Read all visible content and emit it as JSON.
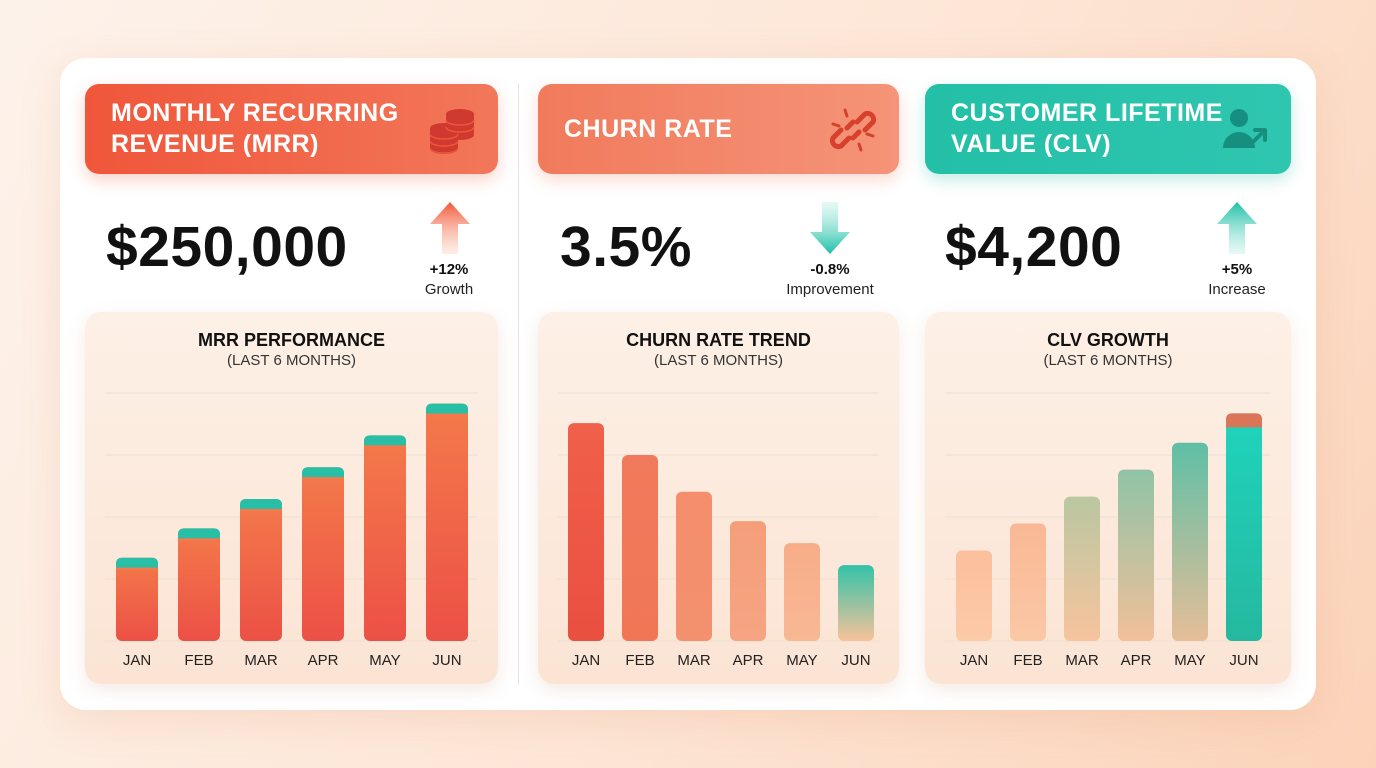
{
  "colors": {
    "coral": "#f05a3c",
    "salmon": "#f3876a",
    "teal": "#26bfa6",
    "peach": "#fbc8a6",
    "text": "#111111"
  },
  "panels": [
    {
      "header": "MONTHLY RECURRING REVENUE (MRR)",
      "icon": "coins-icon",
      "value": "$250,000",
      "trend": "up",
      "change": "+12%",
      "note": "Growth"
    },
    {
      "header": "CHURN RATE",
      "icon": "broken-link-icon",
      "value": "3.5%",
      "trend": "down",
      "change": "-0.8%",
      "note": "Improvement"
    },
    {
      "header": "CUSTOMER LIFETIME VALUE (CLV)",
      "icon": "user-growth-icon",
      "value": "$4,200",
      "trend": "up",
      "change": "+5%",
      "note": "Increase"
    }
  ],
  "chart_data": [
    {
      "type": "bar",
      "title": "MRR PERFORMANCE",
      "subtitle": "(LAST 6 MONTHS)",
      "categories": [
        "JAN",
        "FEB",
        "MAR",
        "APR",
        "MAY",
        "JUN"
      ],
      "values": [
        34,
        46,
        58,
        71,
        84,
        97
      ],
      "ylim": [
        0,
        105
      ],
      "grid": true,
      "style": "coral-with-teal-cap"
    },
    {
      "type": "bar",
      "title": "CHURN RATE TREND",
      "subtitle": "(LAST 6 MONTHS)",
      "categories": [
        "JAN",
        "FEB",
        "MAR",
        "APR",
        "MAY",
        "JUN"
      ],
      "values": [
        89,
        76,
        61,
        49,
        40,
        31
      ],
      "ylim": [
        0,
        105
      ],
      "grid": true,
      "style": "fading-coral"
    },
    {
      "type": "bar",
      "title": "CLV GROWTH",
      "subtitle": "(LAST 6 MONTHS)",
      "categories": [
        "JAN",
        "FEB",
        "MAR",
        "APR",
        "MAY",
        "JUN"
      ],
      "values": [
        37,
        48,
        59,
        70,
        81,
        93
      ],
      "ylim": [
        0,
        105
      ],
      "grid": true,
      "style": "peach-to-teal"
    }
  ]
}
